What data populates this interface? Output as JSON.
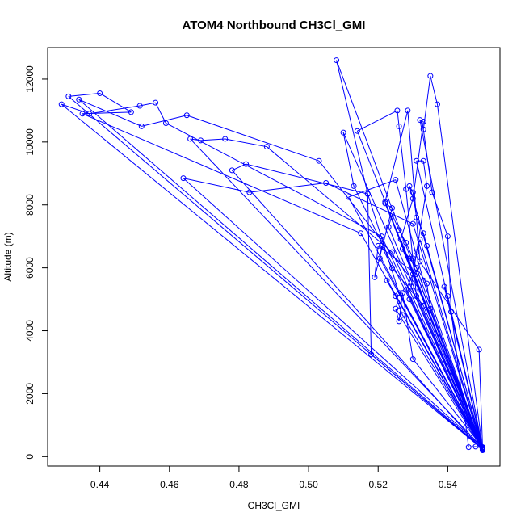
{
  "chart_data": {
    "type": "line",
    "title": "ATOM4 Northbound CH3Cl_GMI",
    "xlabel": "CH3Cl_GMI",
    "ylabel": "Altitude (m)",
    "xlim": [
      0.425,
      0.555
    ],
    "ylim": [
      -300,
      13000
    ],
    "x_ticks": [
      0.44,
      0.46,
      0.48,
      0.5,
      0.52,
      0.54
    ],
    "x_tick_labels": [
      "0.44",
      "0.46",
      "0.48",
      "0.50",
      "0.52",
      "0.54"
    ],
    "y_ticks": [
      0,
      2000,
      4000,
      6000,
      8000,
      10000,
      12000
    ],
    "y_tick_labels": [
      "0",
      "2000",
      "4000",
      "6000",
      "8000",
      "10000",
      "12000"
    ],
    "grid": false,
    "marker": "open-circle",
    "series_color": "#0000ff",
    "points": [
      [
        0.55,
        250
      ],
      [
        0.537,
        11200
      ],
      [
        0.535,
        12100
      ],
      [
        0.533,
        10400
      ],
      [
        0.5355,
        8400
      ],
      [
        0.54,
        7000
      ],
      [
        0.541,
        4600
      ],
      [
        0.55,
        300
      ],
      [
        0.549,
        3400
      ],
      [
        0.532,
        6200
      ],
      [
        0.5285,
        11000
      ],
      [
        0.522,
        8100
      ],
      [
        0.55,
        220
      ],
      [
        0.508,
        12600
      ],
      [
        0.517,
        8350
      ],
      [
        0.518,
        3250
      ],
      [
        0.55,
        240
      ],
      [
        0.429,
        11200
      ],
      [
        0.437,
        10900
      ],
      [
        0.4515,
        11150
      ],
      [
        0.456,
        11250
      ],
      [
        0.459,
        10600
      ],
      [
        0.521,
        7000
      ],
      [
        0.55,
        230
      ],
      [
        0.431,
        11450
      ],
      [
        0.44,
        11550
      ],
      [
        0.449,
        10950
      ],
      [
        0.435,
        10900
      ],
      [
        0.515,
        7100
      ],
      [
        0.55,
        260
      ],
      [
        0.434,
        11350
      ],
      [
        0.452,
        10500
      ],
      [
        0.465,
        10850
      ],
      [
        0.503,
        9400
      ],
      [
        0.532,
        5300
      ],
      [
        0.55,
        280
      ],
      [
        0.466,
        10100
      ],
      [
        0.469,
        10050
      ],
      [
        0.476,
        10100
      ],
      [
        0.488,
        9850
      ],
      [
        0.524,
        6500
      ],
      [
        0.55,
        200
      ],
      [
        0.478,
        9100
      ],
      [
        0.482,
        9300
      ],
      [
        0.517,
        8350
      ],
      [
        0.526,
        5200
      ],
      [
        0.55,
        290
      ],
      [
        0.464,
        8850
      ],
      [
        0.483,
        8400
      ],
      [
        0.505,
        8700
      ],
      [
        0.53,
        7400
      ],
      [
        0.55,
        210
      ],
      [
        0.51,
        10300
      ],
      [
        0.513,
        8600
      ],
      [
        0.529,
        5000
      ],
      [
        0.55,
        270
      ],
      [
        0.514,
        10350
      ],
      [
        0.5255,
        11000
      ],
      [
        0.526,
        10500
      ],
      [
        0.528,
        8500
      ],
      [
        0.531,
        5100
      ],
      [
        0.55,
        250
      ],
      [
        0.532,
        10700
      ],
      [
        0.533,
        10650
      ],
      [
        0.53,
        8200
      ],
      [
        0.5265,
        6900
      ],
      [
        0.55,
        230
      ],
      [
        0.531,
        9400
      ],
      [
        0.533,
        9400
      ],
      [
        0.534,
        8600
      ],
      [
        0.5295,
        5400
      ],
      [
        0.55,
        240
      ],
      [
        0.522,
        8050
      ],
      [
        0.524,
        7900
      ],
      [
        0.519,
        5700
      ],
      [
        0.52,
        6700
      ],
      [
        0.531,
        5800
      ],
      [
        0.55,
        260
      ],
      [
        0.5115,
        8250
      ],
      [
        0.525,
        8800
      ],
      [
        0.533,
        5600
      ],
      [
        0.55,
        220
      ],
      [
        0.525,
        4700
      ],
      [
        0.526,
        4300
      ],
      [
        0.527,
        5200
      ],
      [
        0.53,
        3100
      ],
      [
        0.55,
        300
      ],
      [
        0.539,
        5400
      ],
      [
        0.54,
        5100
      ],
      [
        0.541,
        4600
      ],
      [
        0.546,
        300
      ],
      [
        0.548,
        320
      ],
      [
        0.55,
        260
      ],
      [
        0.527,
        6600
      ],
      [
        0.529,
        6300
      ],
      [
        0.531,
        6000
      ],
      [
        0.534,
        5500
      ],
      [
        0.535,
        4700
      ],
      [
        0.55,
        210
      ],
      [
        0.523,
        7300
      ],
      [
        0.524,
        7700
      ],
      [
        0.526,
        7200
      ],
      [
        0.528,
        6800
      ],
      [
        0.53,
        6300
      ],
      [
        0.55,
        250
      ],
      [
        0.5205,
        6300
      ],
      [
        0.521,
        6700
      ],
      [
        0.524,
        6000
      ],
      [
        0.533,
        4800
      ],
      [
        0.55,
        280
      ],
      [
        0.529,
        8600
      ],
      [
        0.53,
        8400
      ],
      [
        0.531,
        7600
      ],
      [
        0.533,
        7100
      ],
      [
        0.534,
        6700
      ],
      [
        0.55,
        240
      ],
      [
        0.532,
        6900
      ],
      [
        0.531,
        6500
      ],
      [
        0.53,
        5800
      ],
      [
        0.528,
        5300
      ],
      [
        0.55,
        230
      ],
      [
        0.5225,
        5600
      ],
      [
        0.525,
        5100
      ],
      [
        0.526,
        4800
      ],
      [
        0.527,
        4500
      ],
      [
        0.55,
        260
      ]
    ]
  }
}
